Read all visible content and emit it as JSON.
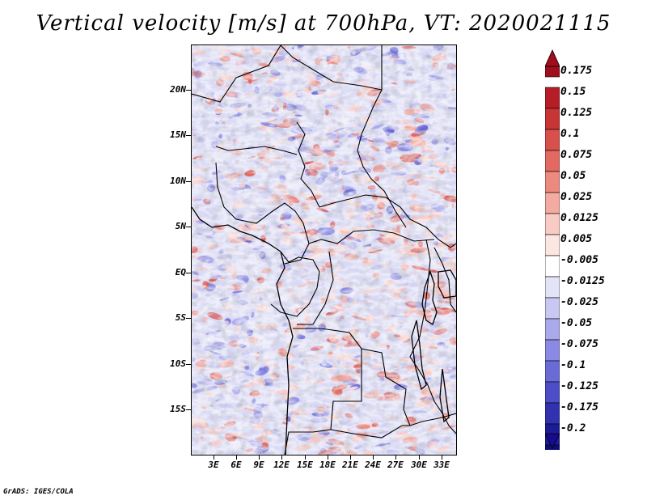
{
  "title": "Vertical velocity [m/s] at 700hPa, VT: 2020021115",
  "credit": "GrADS: IGES/COLA",
  "map": {
    "lon_range": [
      0,
      35
    ],
    "lat_range": [
      -20,
      25
    ],
    "lat_labels": [
      {
        "lat": 20,
        "text": "20N"
      },
      {
        "lat": 15,
        "text": "15N"
      },
      {
        "lat": 10,
        "text": "10N"
      },
      {
        "lat": 5,
        "text": "5N"
      },
      {
        "lat": 0,
        "text": "EQ"
      },
      {
        "lat": -5,
        "text": "5S"
      },
      {
        "lat": -10,
        "text": "10S"
      },
      {
        "lat": -15,
        "text": "15S"
      }
    ],
    "lon_labels": [
      {
        "lon": 3,
        "text": "3E"
      },
      {
        "lon": 6,
        "text": "6E"
      },
      {
        "lon": 9,
        "text": "9E"
      },
      {
        "lon": 12,
        "text": "12E"
      },
      {
        "lon": 15,
        "text": "15E"
      },
      {
        "lon": 18,
        "text": "18E"
      },
      {
        "lon": 21,
        "text": "21E"
      },
      {
        "lon": 24,
        "text": "24E"
      },
      {
        "lon": 27,
        "text": "27E"
      },
      {
        "lon": 30,
        "text": "30E"
      },
      {
        "lon": 33,
        "text": "33E"
      }
    ]
  },
  "colorbar": {
    "labels": [
      "0.175",
      "0.15",
      "0.125",
      "0.1",
      "0.075",
      "0.05",
      "0.025",
      "0.0125",
      "0.005",
      "-0.005",
      "-0.0125",
      "-0.025",
      "-0.05",
      "-0.075",
      "-0.1",
      "-0.125",
      "-0.175",
      "-0.2"
    ],
    "colors": [
      "#a00d1d",
      "#b61e27",
      "#c83535",
      "#d8504b",
      "#e26a62",
      "#ec8a80",
      "#f3aaa1",
      "#f8cbc4",
      "#fce6e2",
      "#ffffff",
      "#e4e4f8",
      "#c8c8f2",
      "#a9a9ec",
      "#8a8ae4",
      "#6b6bd8",
      "#4d4dc8",
      "#3232b0",
      "#1c1c96",
      "#0d0d7a"
    ],
    "high_color": "#a00d1d",
    "low_color": "#1a0a8f"
  },
  "legend_colors": {
    "strong_up_hint": "#e8605a",
    "strong_down_hint": "#7070d8",
    "boundary": "#000000"
  }
}
